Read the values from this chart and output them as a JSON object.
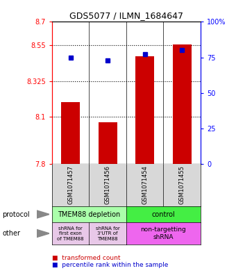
{
  "title": "GDS5077 / ILMN_1684647",
  "samples": [
    "GSM1071457",
    "GSM1071456",
    "GSM1071454",
    "GSM1071455"
  ],
  "red_values": [
    8.19,
    8.065,
    8.48,
    8.555
  ],
  "blue_values": [
    75,
    73,
    77,
    80
  ],
  "ylim_left": [
    7.8,
    8.7
  ],
  "ylim_right": [
    0,
    100
  ],
  "yticks_left": [
    7.8,
    8.1,
    8.325,
    8.55,
    8.7
  ],
  "ytick_labels_left": [
    "7.8",
    "8.1",
    "8.325",
    "8.55",
    "8.7"
  ],
  "yticks_right": [
    0,
    25,
    50,
    75,
    100
  ],
  "ytick_labels_right": [
    "0",
    "25",
    "50",
    "75",
    "100%"
  ],
  "hlines": [
    8.55,
    8.325,
    8.1
  ],
  "protocol_labels": [
    "TMEM88 depletion",
    "control"
  ],
  "protocol_colors": [
    "#aaffaa",
    "#44ee44"
  ],
  "other_labels_left1": "shRNA for\nfirst exon\nof TMEM88",
  "other_labels_left2": "shRNA for\n3'UTR of\nTMEM88",
  "other_labels_right": "non-targetting\nshRNA",
  "other_color_left": "#e8c8e8",
  "other_color_right": "#ee66ee",
  "legend_red": "transformed count",
  "legend_blue": "percentile rank within the sample",
  "bar_color": "#cc0000",
  "dot_color": "#0000cc",
  "bar_width": 0.5,
  "background_color": "#ffffff"
}
